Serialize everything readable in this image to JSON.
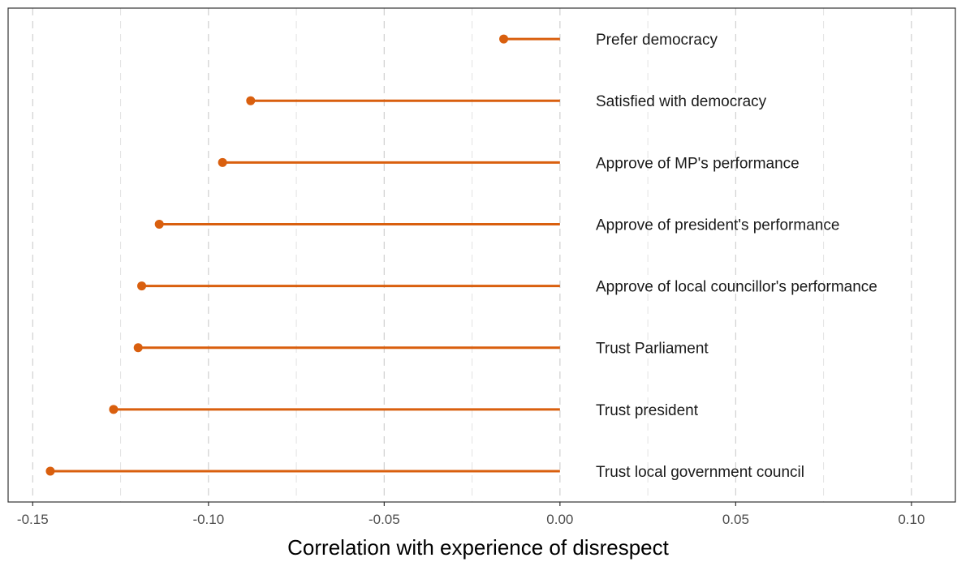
{
  "chart_data": {
    "type": "lollipop",
    "xlabel": "Correlation with experience of disrespect",
    "xlim": [
      -0.157,
      0.1125
    ],
    "x_ticks": [
      -0.15,
      -0.1,
      -0.05,
      0.0,
      0.05,
      0.1
    ],
    "x_tick_labels": [
      "-0.15",
      "-0.10",
      "-0.05",
      "0.00",
      "0.05",
      "0.10"
    ],
    "grid": "vertical dashed major and minor",
    "color": "#d95f0e",
    "categories": [
      "Prefer democracy",
      "Satisfied with democracy",
      "Approve of MP's performance",
      "Approve of president's performance",
      "Approve of local councillor's performance",
      "Trust Parliament",
      "Trust president",
      "Trust local government council"
    ],
    "values": [
      -0.016,
      -0.088,
      -0.096,
      -0.114,
      -0.119,
      -0.12,
      -0.127,
      -0.145
    ]
  }
}
